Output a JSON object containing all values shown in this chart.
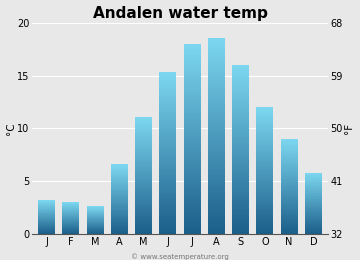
{
  "title": "Andalen water temp",
  "months": [
    "J",
    "F",
    "M",
    "A",
    "M",
    "J",
    "J",
    "A",
    "S",
    "O",
    "N",
    "D"
  ],
  "values_c": [
    3.2,
    3.0,
    2.6,
    6.6,
    11.1,
    15.4,
    18.0,
    18.6,
    16.0,
    12.0,
    9.0,
    5.8
  ],
  "ylim_c": [
    0,
    20
  ],
  "yticks_c": [
    0,
    5,
    10,
    15,
    20
  ],
  "ylim_f": [
    32,
    68
  ],
  "yticks_f": [
    32,
    41,
    50,
    59,
    68
  ],
  "ylabel_left": "°C",
  "ylabel_right": "°F",
  "bg_color": "#e8e8e8",
  "bar_color_top": "#7dd8f0",
  "bar_color_bottom": "#1b5e8a",
  "title_fontsize": 11,
  "axis_fontsize": 7.5,
  "tick_fontsize": 7,
  "watermark": "© www.seatemperature.org"
}
